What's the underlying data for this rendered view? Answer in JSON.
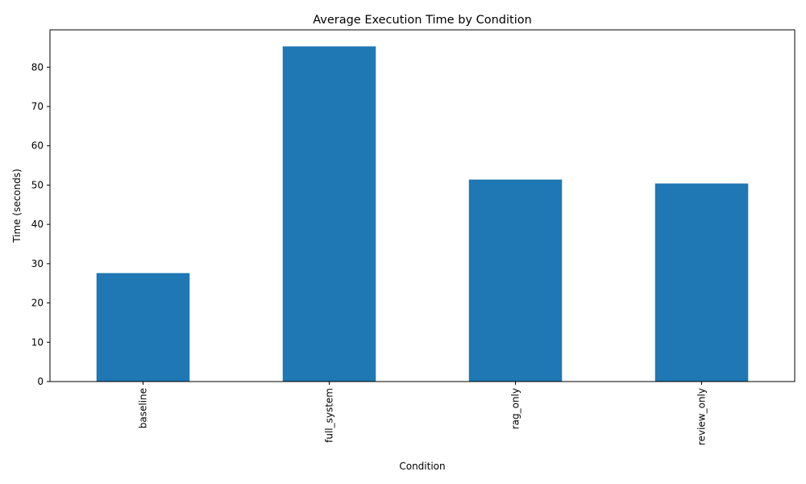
{
  "chart_data": {
    "type": "bar",
    "title": "Average Execution Time by Condition",
    "xlabel": "Condition",
    "ylabel": "Time (seconds)",
    "categories": [
      "baseline",
      "full_system",
      "rag_only",
      "review_only"
    ],
    "values": [
      27.6,
      85.3,
      51.4,
      50.4
    ],
    "ylim": [
      0,
      89.5
    ],
    "yticks": [
      0,
      10,
      20,
      30,
      40,
      50,
      60,
      70,
      80
    ],
    "bar_color": "#1f77b4",
    "grid": false,
    "legend": "none"
  }
}
